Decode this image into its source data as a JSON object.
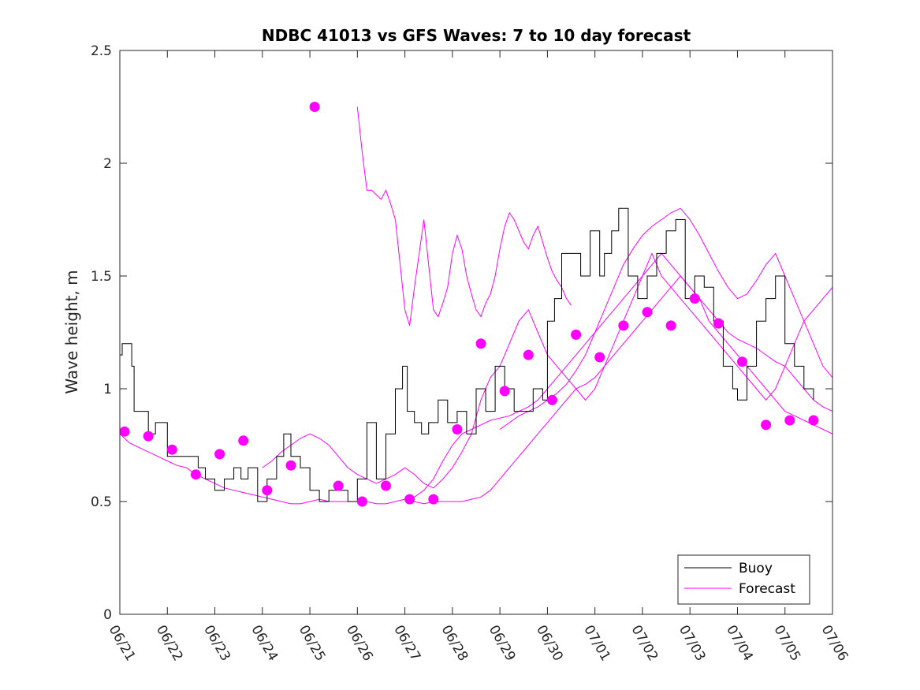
{
  "chart_data": {
    "type": "line",
    "title": "NDBC 41013 vs GFS Waves: 7 to 10 day forecast",
    "xlabel": "",
    "ylabel": "Wave height, m",
    "x_ticks": [
      "06/21",
      "06/22",
      "06/23",
      "06/24",
      "06/25",
      "06/26",
      "06/27",
      "06/28",
      "06/29",
      "06/30",
      "07/01",
      "07/02",
      "07/03",
      "07/04",
      "07/05",
      "07/06"
    ],
    "y_ticks": [
      "0",
      "0.5",
      "1",
      "1.5",
      "2",
      "2.5"
    ],
    "xlim": [
      0,
      15
    ],
    "ylim": [
      0,
      2.5
    ],
    "grid": false,
    "legend": {
      "placement": "bottom-right",
      "entries": [
        "Buoy",
        "Forecast"
      ]
    },
    "colors": {
      "buoy": "#000000",
      "forecast": "#ff00ff"
    },
    "buoy": {
      "name": "Buoy",
      "x": [
        0,
        0.05,
        0.15,
        0.25,
        0.3,
        0.4,
        0.6,
        0.75,
        1.0,
        1.2,
        1.5,
        1.65,
        1.8,
        2.0,
        2.2,
        2.4,
        2.55,
        2.7,
        2.9,
        3.1,
        3.3,
        3.45,
        3.6,
        3.8,
        4.0,
        4.2,
        4.4,
        4.6,
        4.8,
        5.0,
        5.2,
        5.4,
        5.6,
        5.8,
        5.95,
        6.05,
        6.2,
        6.35,
        6.5,
        6.7,
        6.9,
        7.1,
        7.3,
        7.5,
        7.7,
        7.9,
        8.1,
        8.3,
        8.5,
        8.7,
        8.9,
        9.0,
        9.15,
        9.3,
        9.5,
        9.7,
        9.9,
        10.1,
        10.2,
        10.35,
        10.5,
        10.7,
        10.9,
        11.1,
        11.3,
        11.5,
        11.7,
        11.9,
        12.1,
        12.3,
        12.5,
        12.7,
        12.9,
        13.0,
        13.2,
        13.4,
        13.6,
        13.8,
        14.0,
        14.2,
        14.4,
        14.6
      ],
      "values": [
        1.15,
        1.2,
        1.2,
        1.1,
        0.9,
        0.9,
        0.8,
        0.85,
        0.7,
        0.7,
        0.7,
        0.65,
        0.6,
        0.55,
        0.6,
        0.65,
        0.6,
        0.65,
        0.5,
        0.6,
        0.7,
        0.8,
        0.7,
        0.65,
        0.55,
        0.5,
        0.55,
        0.55,
        0.5,
        0.6,
        0.85,
        0.6,
        0.8,
        1.0,
        1.1,
        0.9,
        0.85,
        0.8,
        0.85,
        0.95,
        0.85,
        0.9,
        0.8,
        1.0,
        0.9,
        1.1,
        1.0,
        0.9,
        0.9,
        1.0,
        0.95,
        1.3,
        1.4,
        1.6,
        1.6,
        1.5,
        1.7,
        1.5,
        1.6,
        1.7,
        1.8,
        1.5,
        1.4,
        1.5,
        1.6,
        1.7,
        1.75,
        1.4,
        1.5,
        1.45,
        1.3,
        1.1,
        1.0,
        0.95,
        1.1,
        1.3,
        1.4,
        1.5,
        1.2,
        1.1,
        1.0,
        0.95
      ]
    },
    "forecast_lines": [
      {
        "x": [
          0,
          0.2,
          0.4,
          0.6,
          0.8,
          1.0,
          1.2,
          1.4,
          1.6,
          1.8,
          2.0,
          2.2,
          2.4,
          2.6,
          2.8,
          3.0,
          3.2,
          3.4,
          3.6,
          3.8,
          4.0,
          4.2,
          4.4,
          4.6,
          4.8,
          5.0,
          5.2,
          5.4,
          5.6,
          5.8,
          6.0,
          6.2,
          6.4,
          6.6,
          6.8,
          7.0,
          7.2,
          7.4,
          7.6,
          7.8,
          8.0,
          8.2,
          8.4,
          8.6,
          8.8,
          9.0,
          9.2,
          9.4,
          9.6,
          9.8,
          10.0,
          10.2,
          10.4,
          10.6,
          10.8,
          11.0,
          11.2,
          11.4,
          11.6,
          11.8,
          12.0,
          12.2,
          12.4,
          12.6,
          12.8,
          13.0,
          13.2,
          13.4,
          13.6,
          13.8,
          14.0,
          14.2,
          14.4,
          14.6,
          14.8,
          15.0
        ],
        "values": [
          0.8,
          0.76,
          0.74,
          0.72,
          0.7,
          0.68,
          0.66,
          0.65,
          0.62,
          0.6,
          0.58,
          0.56,
          0.55,
          0.54,
          0.53,
          0.52,
          0.51,
          0.5,
          0.49,
          0.49,
          0.5,
          0.51,
          0.5,
          0.5,
          0.5,
          0.5,
          0.5,
          0.49,
          0.49,
          0.5,
          0.51,
          0.52,
          0.55,
          0.6,
          0.68,
          0.75,
          0.8,
          0.82,
          0.84,
          0.86,
          0.87,
          0.88,
          0.9,
          0.92,
          0.95,
          1.0,
          1.05,
          1.1,
          1.15,
          1.2,
          1.25,
          1.3,
          1.35,
          1.4,
          1.45,
          1.5,
          1.55,
          1.6,
          1.55,
          1.5,
          1.45,
          1.4,
          1.3,
          1.25,
          1.2,
          1.15,
          1.1,
          1.05,
          1.0,
          0.95,
          0.9,
          0.88,
          0.86,
          0.84,
          0.82,
          0.8
        ]
      },
      {
        "x": [
          3.0,
          3.2,
          3.4,
          3.6,
          3.8,
          4.0,
          4.2,
          4.4,
          4.6,
          4.8,
          5.0,
          5.2,
          5.4,
          5.6,
          5.8,
          6.0,
          6.2,
          6.4,
          6.6,
          6.8,
          7.0,
          7.2,
          7.4,
          7.6,
          7.8,
          8.0,
          8.2,
          8.4,
          8.6,
          8.8,
          9.0,
          9.2,
          9.4,
          9.6,
          9.8,
          10.0,
          10.2,
          10.4,
          10.6,
          10.8,
          11.0,
          11.2,
          11.4,
          11.6,
          11.8,
          12.0,
          12.2,
          12.4,
          12.6,
          12.8,
          13.0,
          13.2,
          13.4,
          13.6,
          13.8,
          14.0,
          14.2,
          14.4,
          14.6,
          14.8,
          15.0
        ],
        "values": [
          0.65,
          0.68,
          0.72,
          0.75,
          0.78,
          0.8,
          0.78,
          0.75,
          0.7,
          0.65,
          0.62,
          0.6,
          0.58,
          0.6,
          0.62,
          0.65,
          0.62,
          0.58,
          0.56,
          0.6,
          0.65,
          0.72,
          0.8,
          0.95,
          1.05,
          1.1,
          1.2,
          1.3,
          1.35,
          1.25,
          1.15,
          1.1,
          1.05,
          1.0,
          0.95,
          1.0,
          1.1,
          1.2,
          1.3,
          1.4,
          1.5,
          1.6,
          1.5,
          1.45,
          1.4,
          1.35,
          1.3,
          1.25,
          1.2,
          1.15,
          1.1,
          1.05,
          1.0,
          0.95,
          1.0,
          1.1,
          1.2,
          1.3,
          1.35,
          1.4,
          1.45
        ]
      },
      {
        "x": [
          5.0,
          5.1,
          5.2,
          5.3,
          5.4,
          5.5,
          5.6,
          5.7,
          5.8,
          5.9,
          6.0,
          6.1,
          6.2,
          6.3,
          6.4,
          6.5,
          6.6,
          6.7,
          6.8,
          6.9,
          7.0,
          7.1,
          7.2,
          7.3,
          7.4,
          7.5,
          7.6,
          7.7,
          7.8,
          7.9,
          8.0,
          8.1,
          8.2,
          8.3,
          8.4,
          8.5,
          8.6,
          8.7,
          8.8,
          8.9,
          9.0,
          9.1,
          9.2,
          9.3,
          9.4,
          9.5
        ],
        "values": [
          2.25,
          2.05,
          1.88,
          1.88,
          1.86,
          1.84,
          1.88,
          1.82,
          1.75,
          1.55,
          1.35,
          1.28,
          1.45,
          1.6,
          1.75,
          1.55,
          1.35,
          1.32,
          1.38,
          1.45,
          1.6,
          1.68,
          1.62,
          1.5,
          1.42,
          1.35,
          1.32,
          1.38,
          1.42,
          1.5,
          1.62,
          1.72,
          1.78,
          1.75,
          1.7,
          1.65,
          1.62,
          1.68,
          1.72,
          1.65,
          1.58,
          1.52,
          1.48,
          1.45,
          1.4,
          1.37
        ]
      },
      {
        "x": [
          8.0,
          8.2,
          8.4,
          8.6,
          8.8,
          9.0,
          9.2,
          9.4,
          9.6,
          9.8,
          10.0,
          10.2,
          10.4,
          10.6,
          10.8,
          11.0,
          11.2,
          11.4,
          11.6,
          11.8,
          12.0,
          12.2,
          12.4,
          12.6,
          12.8,
          13.0,
          13.2,
          13.4,
          13.6,
          13.8,
          14.0,
          14.2,
          14.4,
          14.6,
          14.8,
          15.0
        ],
        "values": [
          0.82,
          0.85,
          0.88,
          0.9,
          0.92,
          0.95,
          0.98,
          1.02,
          1.08,
          1.15,
          1.25,
          1.35,
          1.45,
          1.55,
          1.62,
          1.68,
          1.72,
          1.75,
          1.78,
          1.8,
          1.75,
          1.68,
          1.6,
          1.52,
          1.45,
          1.4,
          1.42,
          1.48,
          1.55,
          1.6,
          1.5,
          1.4,
          1.3,
          1.2,
          1.1,
          1.05
        ]
      },
      {
        "x": [
          6.0,
          6.2,
          6.4,
          6.6,
          6.8,
          7.0,
          7.2,
          7.4,
          7.6,
          7.8,
          8.0,
          8.2,
          8.4,
          8.6,
          8.8,
          9.0,
          9.2,
          9.4,
          9.6,
          9.8,
          10.0,
          10.2,
          10.4,
          10.6,
          10.8,
          11.0,
          11.2,
          11.4,
          11.6,
          11.8,
          12.0,
          12.2,
          12.4,
          12.6,
          12.8,
          13.0,
          13.2,
          13.4,
          13.6,
          13.8,
          14.0,
          14.2,
          14.4,
          14.6,
          14.8,
          15.0
        ],
        "values": [
          0.5,
          0.5,
          0.49,
          0.5,
          0.5,
          0.5,
          0.5,
          0.51,
          0.52,
          0.55,
          0.6,
          0.65,
          0.7,
          0.75,
          0.8,
          0.85,
          0.9,
          0.95,
          1.0,
          1.02,
          1.05,
          1.1,
          1.15,
          1.2,
          1.25,
          1.3,
          1.35,
          1.4,
          1.45,
          1.5,
          1.45,
          1.4,
          1.35,
          1.3,
          1.25,
          1.22,
          1.2,
          1.18,
          1.15,
          1.12,
          1.1,
          1.05,
          1.0,
          0.95,
          0.92,
          0.9
        ]
      }
    ],
    "forecast_points": {
      "x": [
        0.1,
        0.6,
        1.1,
        1.6,
        2.1,
        2.6,
        3.1,
        3.6,
        4.1,
        4.6,
        5.1,
        5.6,
        6.1,
        6.6,
        7.1,
        7.6,
        8.1,
        8.6,
        9.1,
        9.6,
        10.1,
        10.6,
        11.1,
        11.6,
        12.1,
        12.6,
        13.1,
        13.6,
        14.1,
        14.6
      ],
      "values": [
        0.81,
        0.79,
        0.73,
        0.62,
        0.71,
        0.77,
        0.55,
        0.66,
        2.25,
        0.57,
        0.5,
        0.57,
        0.51,
        0.51,
        0.82,
        1.2,
        0.99,
        1.15,
        0.95,
        1.24,
        1.14,
        1.28,
        1.34,
        1.28,
        1.4,
        1.29,
        1.12,
        0.84,
        0.86,
        0.86
      ]
    }
  }
}
